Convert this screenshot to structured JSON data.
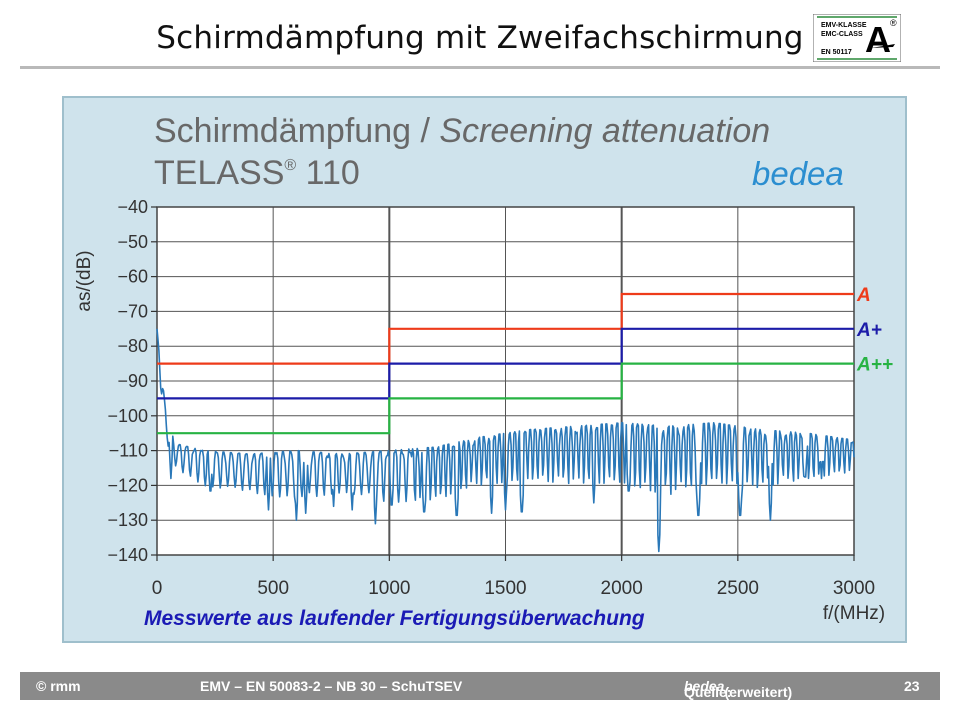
{
  "slide": {
    "title": "Schirmdämpfung mit Zweifachschirmung",
    "logo": {
      "line1": "EMV-KLASSE",
      "line2": "EMC-CLASS",
      "line3": "EN 50117",
      "letter": "A",
      "mark": "®"
    }
  },
  "chart": {
    "title_regular": "Schirmdämpfung / ",
    "title_italic": "Screening attenuation",
    "subtitle_main": "TELASS",
    "subtitle_reg": "®",
    "subtitle_num": " 110",
    "brand": "bedea",
    "caption": "Messwerte aus laufender Fertigungsüberwachung"
  },
  "chart_data": {
    "type": "line",
    "title": "Schirmdämpfung / Screening attenuation — TELASS® 110",
    "xlabel": "f/(MHz)",
    "ylabel": "as/(dB)",
    "xlim": [
      0,
      3000
    ],
    "ylim": [
      -140,
      -40
    ],
    "x_ticks": [
      0,
      500,
      1000,
      1500,
      2000,
      2500,
      3000
    ],
    "x_tick_labels": [
      "0",
      "500",
      "1000",
      "1500",
      "2000",
      "2500",
      "3000"
    ],
    "y_ticks": [
      -40,
      -50,
      -60,
      -70,
      -80,
      -90,
      -100,
      -110,
      -120,
      -130,
      -140
    ],
    "y_tick_labels": [
      "−40",
      "−50",
      "−60",
      "−70",
      "−80",
      "−90",
      "−100",
      "−110",
      "−120",
      "−130",
      "−140"
    ],
    "grid": true,
    "limit_lines": [
      {
        "name": "A",
        "color": "#ee3b1a",
        "steps": [
          [
            0,
            -85
          ],
          [
            1000,
            -85
          ],
          [
            1000,
            -75
          ],
          [
            2000,
            -75
          ],
          [
            2000,
            -65
          ],
          [
            3000,
            -65
          ]
        ]
      },
      {
        "name": "A+",
        "color": "#1c1ca8",
        "steps": [
          [
            0,
            -95
          ],
          [
            1000,
            -95
          ],
          [
            1000,
            -85
          ],
          [
            2000,
            -85
          ],
          [
            2000,
            -75
          ],
          [
            3000,
            -75
          ]
        ]
      },
      {
        "name": "A++",
        "color": "#27b343",
        "steps": [
          [
            0,
            -105
          ],
          [
            1000,
            -105
          ],
          [
            1000,
            -95
          ],
          [
            2000,
            -95
          ],
          [
            2000,
            -85
          ],
          [
            3000,
            -85
          ]
        ]
      }
    ],
    "measured": {
      "color": "#2a78b8",
      "envelope_x": [
        0,
        20,
        40,
        80,
        200,
        400,
        600,
        800,
        1000,
        1200,
        1400,
        1600,
        1800,
        2000,
        2200,
        2400,
        2600,
        2800,
        3000
      ],
      "upper": [
        -75,
        -88,
        -100,
        -108,
        -110,
        -111,
        -110,
        -111,
        -110,
        -109,
        -106,
        -104,
        -103,
        -102,
        -103,
        -102,
        -104,
        -105,
        -107
      ],
      "lower": [
        -80,
        -95,
        -108,
        -115,
        -120,
        -122,
        -124,
        -122,
        -125,
        -124,
        -120,
        -118,
        -120,
        -119,
        -123,
        -119,
        -121,
        -118,
        -116
      ],
      "spikes": [
        [
          60,
          -118
        ],
        [
          230,
          -124
        ],
        [
          480,
          -127
        ],
        [
          600,
          -130
        ],
        [
          640,
          -128
        ],
        [
          760,
          -126
        ],
        [
          840,
          -127
        ],
        [
          940,
          -131
        ],
        [
          1010,
          -128
        ],
        [
          1150,
          -130
        ],
        [
          1290,
          -131
        ],
        [
          1440,
          -128
        ],
        [
          1500,
          -127
        ],
        [
          1570,
          -130
        ],
        [
          1880,
          -125
        ],
        [
          2030,
          -124
        ],
        [
          2160,
          -139
        ],
        [
          2330,
          -131
        ],
        [
          2510,
          -131
        ],
        [
          2640,
          -130
        ],
        [
          2790,
          -120
        ],
        [
          2860,
          -118
        ]
      ]
    }
  },
  "footer": {
    "copyright": "© rmm",
    "center": "EMV – EN 50083-2 – NB 30 – SchuTSEV",
    "source_prefix": "Quelle: ",
    "source_name": "bedea",
    "source_suffix": " (erweitert)",
    "page": "23"
  }
}
